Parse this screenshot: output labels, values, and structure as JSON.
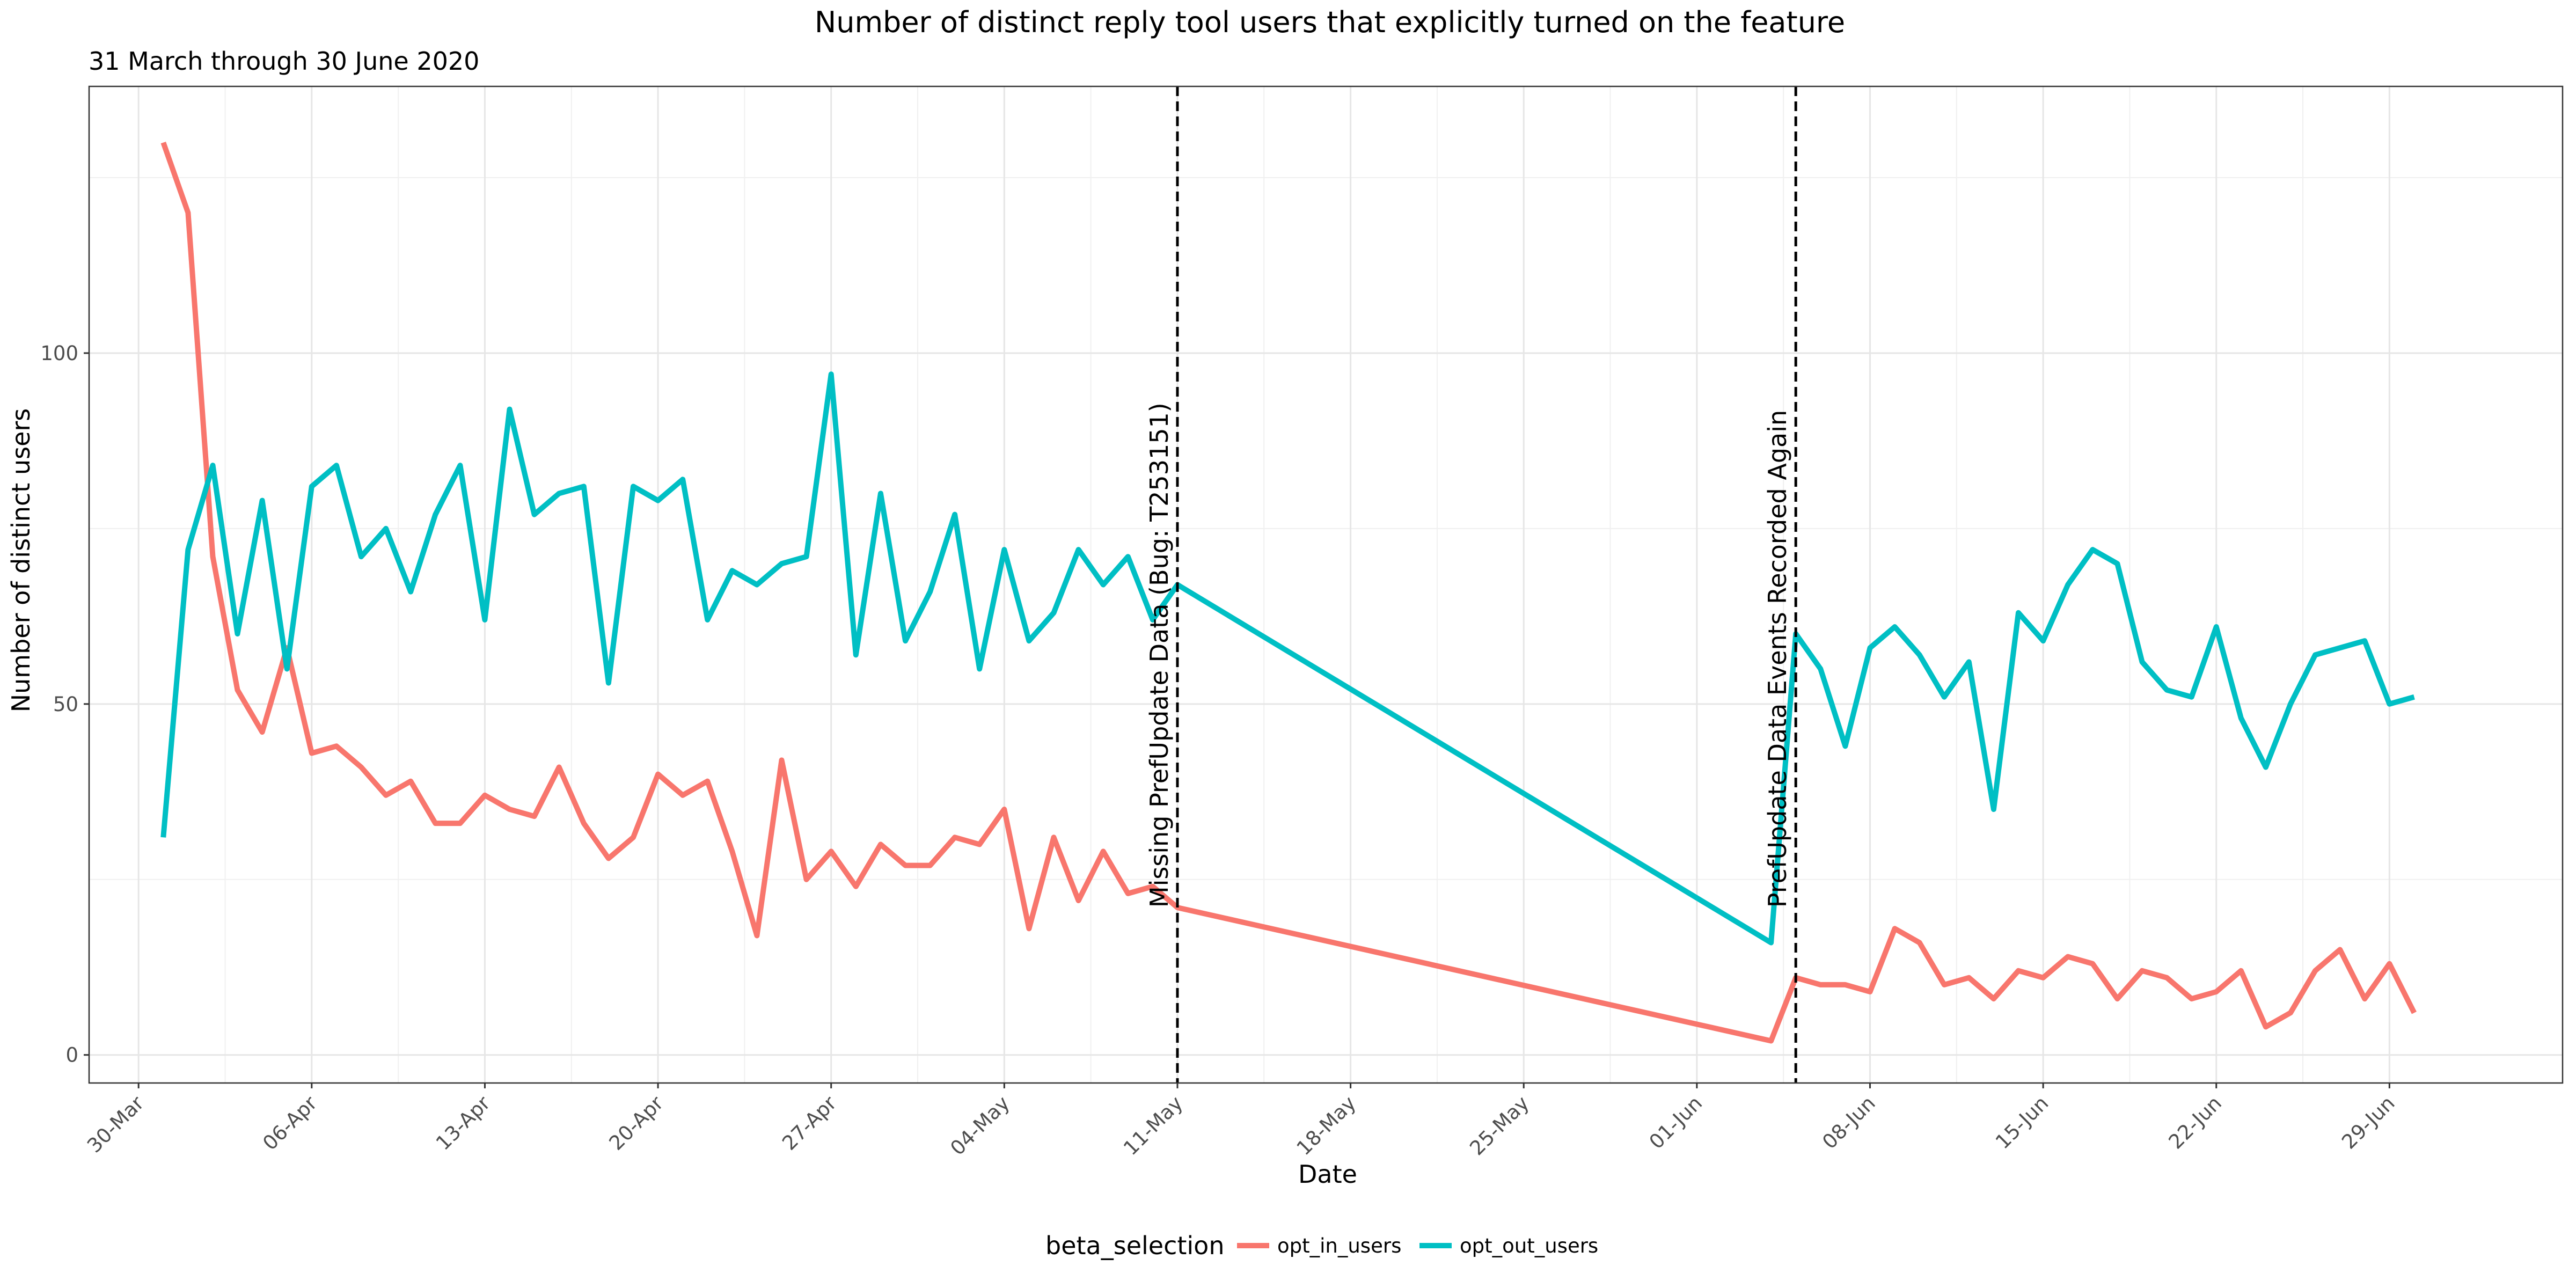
{
  "chart_data": {
    "type": "line",
    "title": "Number of distinct reply tool users that explicitly turned on the feature",
    "subtitle": "31 March through 30 June 2020",
    "xlabel": "Date",
    "ylabel": "Number of distinct users",
    "x_range": [
      "2020-03-28",
      "2020-07-06"
    ],
    "ylim": [
      -4,
      138
    ],
    "x_tick_labels": [
      "30-Mar",
      "06-Apr",
      "13-Apr",
      "20-Apr",
      "27-Apr",
      "04-May",
      "11-May",
      "18-May",
      "25-May",
      "01-Jun",
      "08-Jun",
      "15-Jun",
      "22-Jun",
      "29-Jun"
    ],
    "x_tick_dates": [
      "2020-03-30",
      "2020-04-06",
      "2020-04-13",
      "2020-04-20",
      "2020-04-27",
      "2020-05-04",
      "2020-05-11",
      "2020-05-18",
      "2020-05-25",
      "2020-06-01",
      "2020-06-08",
      "2020-06-15",
      "2020-06-22",
      "2020-06-29"
    ],
    "y_ticks": [
      0,
      50,
      100
    ],
    "grid": true,
    "legend": {
      "title": "beta_selection",
      "position": "bottom"
    },
    "x": [
      "2020-03-31",
      "2020-04-01",
      "2020-04-02",
      "2020-04-03",
      "2020-04-04",
      "2020-04-05",
      "2020-04-06",
      "2020-04-07",
      "2020-04-08",
      "2020-04-09",
      "2020-04-10",
      "2020-04-11",
      "2020-04-12",
      "2020-04-13",
      "2020-04-14",
      "2020-04-15",
      "2020-04-16",
      "2020-04-17",
      "2020-04-18",
      "2020-04-19",
      "2020-04-20",
      "2020-04-21",
      "2020-04-22",
      "2020-04-23",
      "2020-04-24",
      "2020-04-25",
      "2020-04-26",
      "2020-04-27",
      "2020-04-28",
      "2020-04-29",
      "2020-04-30",
      "2020-05-01",
      "2020-05-02",
      "2020-05-03",
      "2020-05-04",
      "2020-05-05",
      "2020-05-06",
      "2020-05-07",
      "2020-05-08",
      "2020-05-09",
      "2020-05-10",
      "2020-05-11",
      "2020-06-04",
      "2020-06-05",
      "2020-06-06",
      "2020-06-07",
      "2020-06-08",
      "2020-06-09",
      "2020-06-10",
      "2020-06-11",
      "2020-06-12",
      "2020-06-13",
      "2020-06-14",
      "2020-06-15",
      "2020-06-16",
      "2020-06-17",
      "2020-06-18",
      "2020-06-19",
      "2020-06-20",
      "2020-06-21",
      "2020-06-22",
      "2020-06-23",
      "2020-06-24",
      "2020-06-25",
      "2020-06-26",
      "2020-06-27",
      "2020-06-28",
      "2020-06-29",
      "2020-06-30"
    ],
    "series": [
      {
        "name": "opt_in_users",
        "color": "#F8766D",
        "values": [
          130,
          120,
          71,
          52,
          46,
          58,
          43,
          44,
          41,
          37,
          39,
          33,
          33,
          37,
          35,
          34,
          41,
          33,
          28,
          31,
          40,
          37,
          39,
          29,
          17,
          42,
          25,
          29,
          24,
          30,
          27,
          27,
          31,
          30,
          35,
          18,
          31,
          22,
          29,
          23,
          24,
          21,
          2,
          11,
          10,
          10,
          9,
          18,
          16,
          10,
          11,
          8,
          12,
          11,
          14,
          13,
          8,
          12,
          11,
          8,
          9,
          12,
          4,
          6,
          12,
          15,
          8,
          13,
          6
        ]
      },
      {
        "name": "opt_out_users",
        "color": "#00BFC4",
        "values": [
          31,
          72,
          84,
          60,
          79,
          55,
          81,
          84,
          71,
          75,
          66,
          77,
          84,
          62,
          92,
          77,
          80,
          81,
          53,
          81,
          79,
          82,
          62,
          69,
          67,
          70,
          71,
          97,
          57,
          80,
          59,
          66,
          77,
          55,
          72,
          59,
          63,
          72,
          67,
          71,
          62,
          67,
          16,
          60,
          55,
          44,
          58,
          61,
          57,
          51,
          56,
          35,
          63,
          59,
          67,
          72,
          70,
          56,
          52,
          51,
          61,
          48,
          41,
          50,
          57,
          58,
          59,
          50,
          51
        ]
      }
    ],
    "annotations": [
      {
        "x": "2020-05-11",
        "text": "Missing PrefUpdate Data (Bug: T253151)",
        "style": "dashed vertical line"
      },
      {
        "x": "2020-06-05",
        "text": "PrefUpdate Data Events Recorded Again",
        "style": "dashed vertical line"
      }
    ]
  }
}
